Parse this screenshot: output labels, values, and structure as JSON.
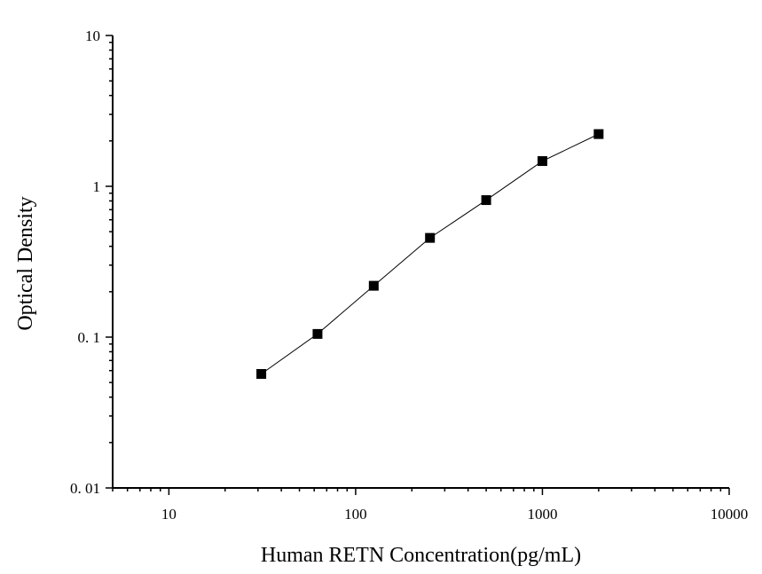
{
  "chart_data": {
    "type": "scatter",
    "title": "",
    "xlabel": "Human RETN Concentration(pg/mL)",
    "ylabel": "Optical Density",
    "xscale": "log",
    "yscale": "log",
    "xlim": [
      5,
      10000
    ],
    "ylim": [
      0.01,
      10
    ],
    "xticks": [
      {
        "value": 10,
        "label": "10"
      },
      {
        "value": 100,
        "label": "100"
      },
      {
        "value": 1000,
        "label": "1000"
      },
      {
        "value": 10000,
        "label": "10000"
      }
    ],
    "yticks": [
      {
        "value": 0.01,
        "label": "0. 01"
      },
      {
        "value": 0.1,
        "label": "0. 1"
      },
      {
        "value": 1,
        "label": "1"
      },
      {
        "value": 10,
        "label": "10"
      }
    ],
    "grid": false,
    "legend": "none",
    "series": [
      {
        "marker": "square",
        "line": true,
        "color": "#000000",
        "x": [
          31.25,
          62.5,
          125,
          250,
          500,
          1000,
          2000
        ],
        "y": [
          0.057,
          0.105,
          0.219,
          0.455,
          0.81,
          1.47,
          2.22
        ]
      }
    ]
  }
}
